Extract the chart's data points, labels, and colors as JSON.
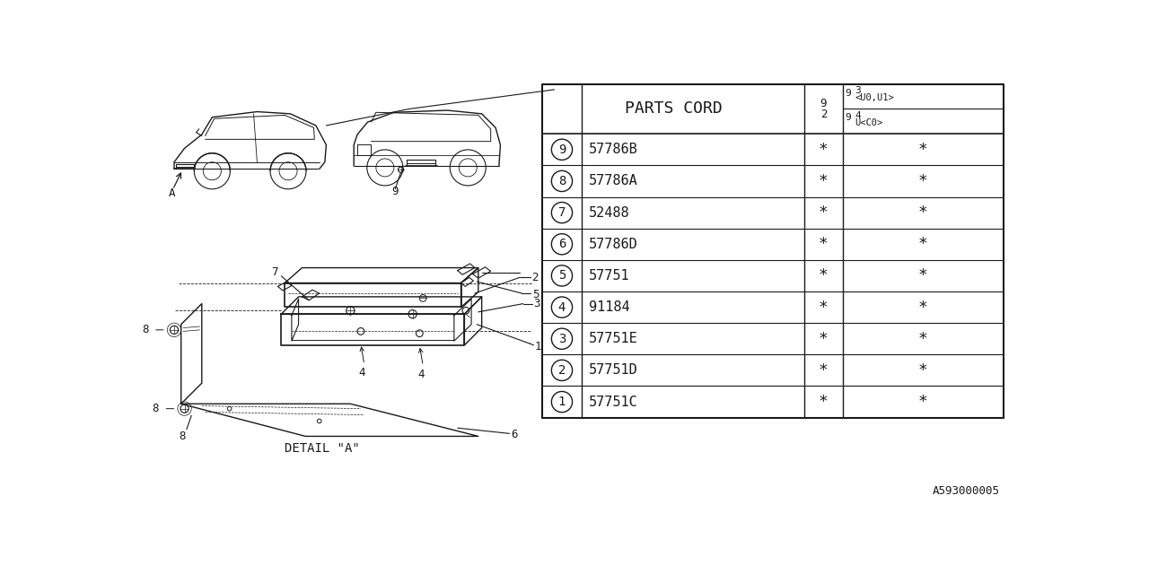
{
  "bg_color": "#ffffff",
  "line_color": "#1a1a1a",
  "fig_width": 12.8,
  "fig_height": 6.4,
  "title": "PARTS CORD",
  "rows": [
    {
      "num": "1",
      "code": "57751C"
    },
    {
      "num": "2",
      "code": "57751D"
    },
    {
      "num": "3",
      "code": "57751E"
    },
    {
      "num": "4",
      "code": "91184"
    },
    {
      "num": "5",
      "code": "57751"
    },
    {
      "num": "6",
      "code": "57786D"
    },
    {
      "num": "7",
      "code": "52488"
    },
    {
      "num": "8",
      "code": "57786A"
    },
    {
      "num": "9",
      "code": "57786B"
    }
  ],
  "footer_text": "A593000005"
}
